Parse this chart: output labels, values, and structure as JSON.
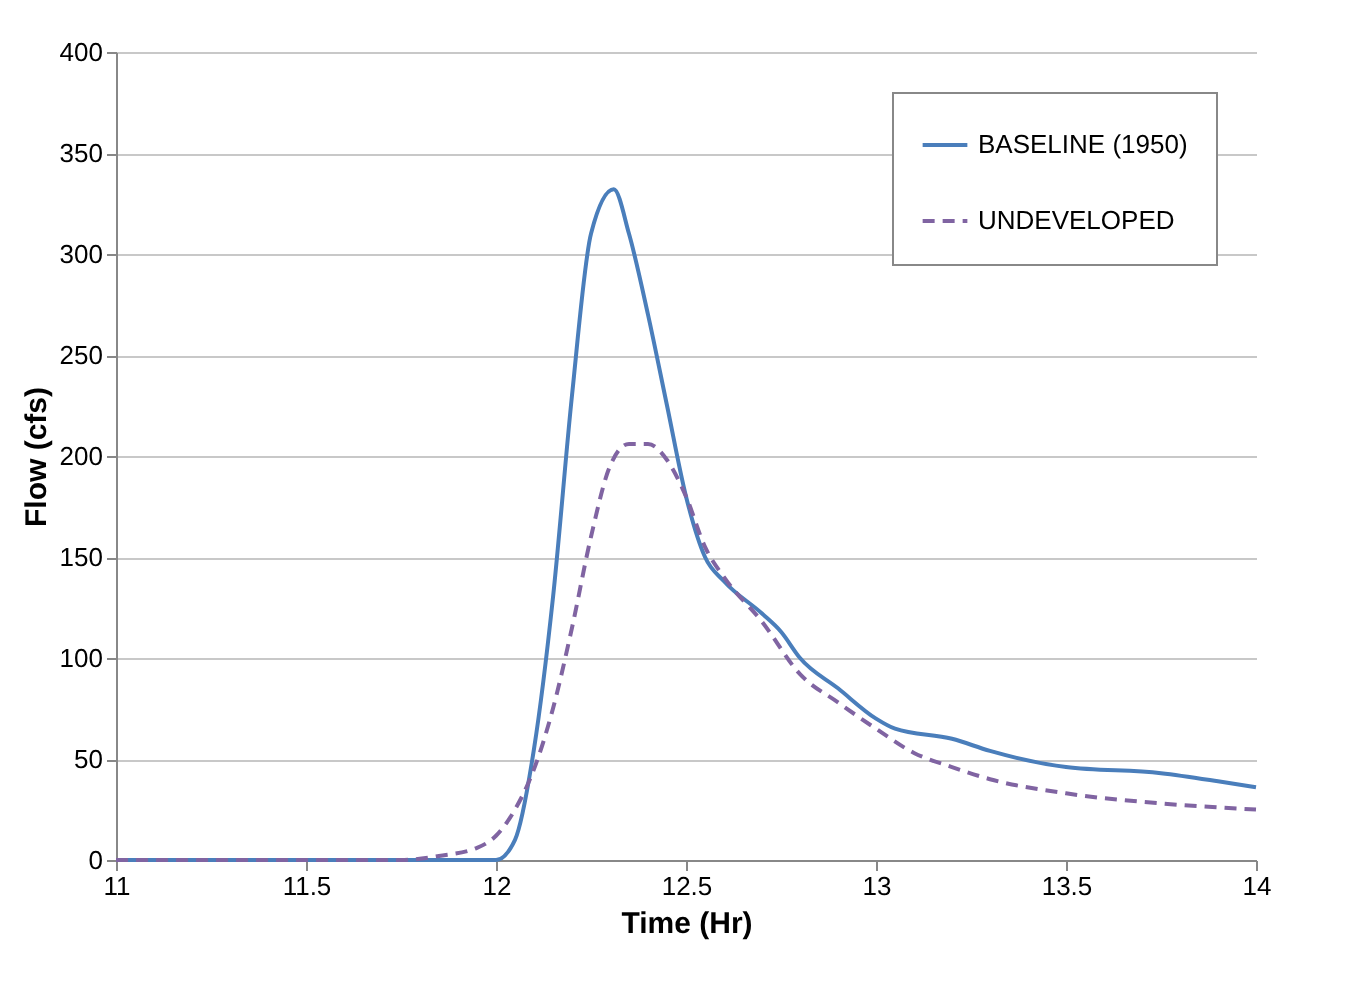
{
  "chart_data": {
    "type": "line",
    "xlabel": "Time (Hr)",
    "ylabel": "Flow (cfs)",
    "xlim": [
      11,
      14
    ],
    "xticks": [
      11,
      11.5,
      12,
      12.5,
      13,
      13.5,
      14
    ],
    "ylim": [
      0,
      400
    ],
    "yticks": [
      0,
      50,
      100,
      150,
      200,
      250,
      300,
      350,
      400
    ],
    "grid": "y",
    "legend": "top right",
    "marker": "none",
    "series": [
      {
        "name": "BASELINE (1950)",
        "color": "#4a7ebb",
        "line_style": "solid",
        "x": [
          11,
          11.5,
          12,
          12.05,
          12.1,
          12.15,
          12.2,
          12.25,
          12.31,
          12.35,
          12.4,
          12.45,
          12.5,
          12.55,
          12.6,
          12.7,
          12.75,
          12.8,
          12.9,
          13,
          13.05,
          13.2,
          13.3,
          13.5,
          13.75,
          13.9,
          14
        ],
        "values": [
          0,
          0,
          0,
          10,
          55,
          130,
          230,
          310,
          332,
          310,
          270,
          225,
          180,
          150,
          138,
          122,
          113,
          100,
          85,
          70,
          65,
          60,
          54,
          46,
          43,
          39,
          36
        ]
      },
      {
        "name": "UNDEVELOPED",
        "color": "#8064a2",
        "line_style": "dashed",
        "x": [
          11,
          11.5,
          11.75,
          11.85,
          11.95,
          12,
          12.05,
          12.1,
          12.15,
          12.2,
          12.25,
          12.3,
          12.35,
          12.4,
          12.45,
          12.5,
          12.55,
          12.6,
          12.7,
          12.8,
          12.9,
          13,
          13.1,
          13.2,
          13.3,
          13.5,
          13.75,
          14
        ],
        "values": [
          0,
          0,
          0,
          2,
          6,
          12,
          25,
          45,
          75,
          115,
          160,
          195,
          206,
          206,
          198,
          180,
          155,
          140,
          118,
          92,
          78,
          65,
          53,
          46,
          40,
          33,
          28,
          25
        ]
      }
    ]
  }
}
